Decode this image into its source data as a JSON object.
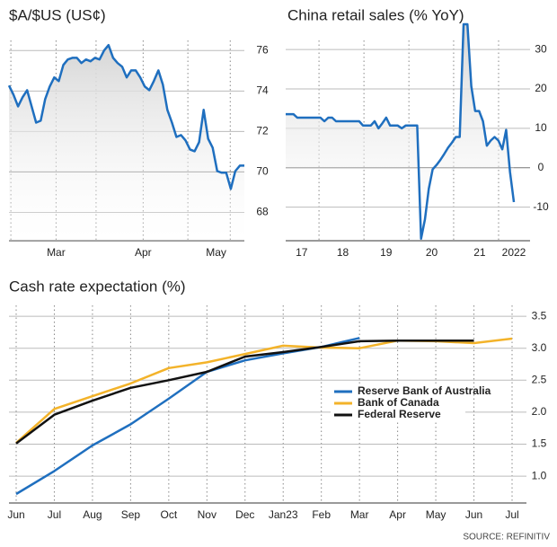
{
  "chart_data": [
    {
      "type": "line",
      "title": "$A/$US (US¢)",
      "fill": true,
      "color": "#1f6fbf",
      "x_labels": [
        "Mar",
        "Apr",
        "May"
      ],
      "values": [
        74.27,
        73.82,
        73.24,
        73.69,
        74.04,
        73.24,
        72.44,
        72.53,
        73.6,
        74.22,
        74.67,
        74.49,
        75.29,
        75.56,
        75.64,
        75.64,
        75.38,
        75.56,
        75.47,
        75.64,
        75.56,
        76,
        76.27,
        75.64,
        75.38,
        75.2,
        74.67,
        75.02,
        75.02,
        74.67,
        74.22,
        74.04,
        74.49,
        75.02,
        74.31,
        73.07,
        72.44,
        71.73,
        71.82,
        71.56,
        71.11,
        71.02,
        71.47,
        73.07,
        71.64,
        71.2,
        70.04,
        69.96,
        69.96,
        69.16,
        70.04,
        70.31,
        70.31
      ],
      "ylim": [
        66.6,
        77.3
      ],
      "yticks": [
        68,
        70,
        72,
        74,
        76
      ],
      "grid": true
    },
    {
      "type": "line",
      "title": "China retail sales (% YoY)",
      "fill": true,
      "color": "#1f6fbf",
      "x_labels": [
        "17",
        "18",
        "19",
        "20",
        "21",
        "2022"
      ],
      "values": [
        13.6,
        13.6,
        13.6,
        12.7,
        12.7,
        12.7,
        12.7,
        12.7,
        12.7,
        12.7,
        11.8,
        12.7,
        12.7,
        11.8,
        11.8,
        11.8,
        11.8,
        11.8,
        11.8,
        11.8,
        10.7,
        10.7,
        10.7,
        11.8,
        10.0,
        11.3,
        12.7,
        10.7,
        10.7,
        10.7,
        10.0,
        10.7,
        10.7,
        10.7,
        10.7,
        -18,
        -13.1,
        -5.3,
        -0.4,
        0.7,
        2.0,
        3.5,
        5.1,
        6.4,
        7.8,
        7.8,
        36.4,
        36.4,
        20.7,
        14.4,
        14.4,
        11.8,
        5.6,
        6.9,
        7.8,
        6.9,
        4.7,
        9.6,
        -1.1,
        -8.7
      ],
      "ylim": [
        -18.5,
        36.4
      ],
      "yticks": [
        -10,
        0,
        10,
        20,
        30
      ],
      "grid": true
    },
    {
      "type": "line",
      "title": "Cash rate expectation (%)",
      "categories": [
        "Jun",
        "Jul",
        "Aug",
        "Sep",
        "Oct",
        "Nov",
        "Dec",
        "Jan23",
        "Feb",
        "Mar",
        "Apr",
        "May",
        "Jun",
        "Jul"
      ],
      "series": [
        {
          "name": "Reserve Bank of Australia",
          "color": "#1f6fbf",
          "values": [
            0.72,
            1.08,
            1.48,
            1.81,
            2.21,
            2.63,
            2.81,
            2.92,
            3.02,
            3.16,
            null,
            null,
            null,
            null
          ]
        },
        {
          "name": "Bank of Canada",
          "color": "#f3b32a",
          "values": [
            1.52,
            2.05,
            2.25,
            2.45,
            2.69,
            2.78,
            2.91,
            3.04,
            3.01,
            3.0,
            3.12,
            3.11,
            3.08,
            3.15
          ]
        },
        {
          "name": "Federal Reserve",
          "color": "#111111",
          "values": [
            1.51,
            1.96,
            2.18,
            2.38,
            2.5,
            2.63,
            2.87,
            2.94,
            3.02,
            3.11,
            3.12,
            3.12,
            3.12,
            null
          ]
        }
      ],
      "ylim": [
        0.58,
        3.67
      ],
      "yticks": [
        {
          "value": 1,
          "label": "1.0"
        },
        {
          "value": 1.5,
          "label": "1.5"
        },
        {
          "value": 2,
          "label": "2.0"
        },
        {
          "value": 2.5,
          "label": "2.5"
        },
        {
          "value": 3,
          "label": "3.0"
        },
        {
          "value": 3.5,
          "label": "3.5"
        }
      ],
      "grid": true
    }
  ],
  "source": "SOURCE: REFINITIV"
}
